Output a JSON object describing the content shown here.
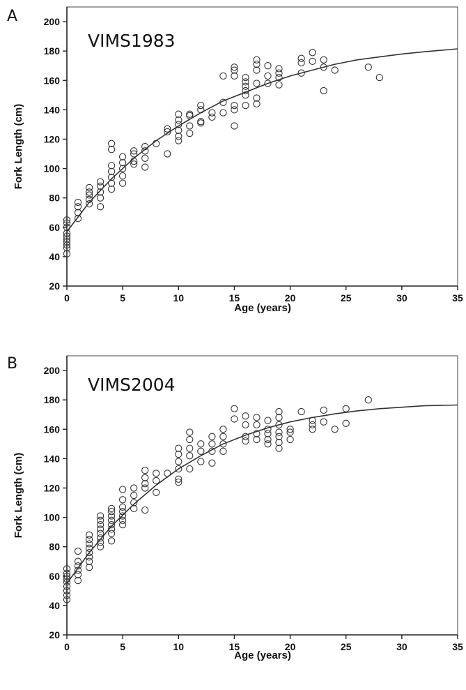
{
  "chart_data": [
    {
      "panel": "A",
      "type": "scatter",
      "title": "VIMS1983",
      "xlabel": "Age (years)",
      "ylabel": "Fork Length (cm)",
      "xlim": [
        0,
        35
      ],
      "ylim": [
        20,
        210
      ],
      "xticks": [
        0,
        5,
        10,
        15,
        20,
        25,
        30,
        35
      ],
      "yticks": [
        20,
        40,
        60,
        80,
        100,
        120,
        140,
        160,
        180,
        200
      ],
      "grid": false,
      "points": [
        [
          0,
          42
        ],
        [
          0,
          46
        ],
        [
          0,
          48
        ],
        [
          0,
          50
        ],
        [
          0,
          52
        ],
        [
          0,
          54
        ],
        [
          0,
          56
        ],
        [
          0,
          60
        ],
        [
          0,
          63
        ],
        [
          0,
          65
        ],
        [
          1,
          66
        ],
        [
          1,
          70
        ],
        [
          1,
          74
        ],
        [
          1,
          77
        ],
        [
          2,
          76
        ],
        [
          2,
          79
        ],
        [
          2,
          82
        ],
        [
          2,
          84
        ],
        [
          2,
          87
        ],
        [
          3,
          74
        ],
        [
          3,
          80
        ],
        [
          3,
          84
        ],
        [
          3,
          88
        ],
        [
          3,
          91
        ],
        [
          4,
          86
        ],
        [
          4,
          90
        ],
        [
          4,
          94
        ],
        [
          4,
          98
        ],
        [
          4,
          102
        ],
        [
          4,
          113
        ],
        [
          4,
          117
        ],
        [
          5,
          90
        ],
        [
          5,
          95
        ],
        [
          5,
          100
        ],
        [
          5,
          104
        ],
        [
          5,
          108
        ],
        [
          6,
          103
        ],
        [
          6,
          105
        ],
        [
          6,
          110
        ],
        [
          6,
          112
        ],
        [
          7,
          101
        ],
        [
          7,
          107
        ],
        [
          7,
          112
        ],
        [
          7,
          115
        ],
        [
          8,
          117
        ],
        [
          9,
          110
        ],
        [
          9,
          125
        ],
        [
          9,
          127
        ],
        [
          10,
          119
        ],
        [
          10,
          122
        ],
        [
          10,
          126
        ],
        [
          10,
          130
        ],
        [
          10,
          133
        ],
        [
          10,
          137
        ],
        [
          11,
          124
        ],
        [
          11,
          129
        ],
        [
          11,
          136
        ],
        [
          11,
          137
        ],
        [
          12,
          131
        ],
        [
          12,
          132
        ],
        [
          12,
          140
        ],
        [
          12,
          143
        ],
        [
          13,
          135
        ],
        [
          13,
          138
        ],
        [
          14,
          138
        ],
        [
          14,
          145
        ],
        [
          14,
          163
        ],
        [
          15,
          129
        ],
        [
          15,
          140
        ],
        [
          15,
          143
        ],
        [
          15,
          163
        ],
        [
          15,
          167
        ],
        [
          15,
          169
        ],
        [
          16,
          143
        ],
        [
          16,
          150
        ],
        [
          16,
          153
        ],
        [
          16,
          156
        ],
        [
          16,
          159
        ],
        [
          16,
          162
        ],
        [
          17,
          144
        ],
        [
          17,
          148
        ],
        [
          17,
          158
        ],
        [
          17,
          167
        ],
        [
          17,
          171
        ],
        [
          17,
          174
        ],
        [
          18,
          158
        ],
        [
          18,
          163
        ],
        [
          18,
          170
        ],
        [
          19,
          157
        ],
        [
          19,
          162
        ],
        [
          19,
          165
        ],
        [
          19,
          168
        ],
        [
          21,
          165
        ],
        [
          21,
          172
        ],
        [
          21,
          175
        ],
        [
          22,
          173
        ],
        [
          22,
          179
        ],
        [
          23,
          153
        ],
        [
          23,
          169
        ],
        [
          23,
          174
        ],
        [
          24,
          167
        ],
        [
          27,
          169
        ],
        [
          28,
          162
        ]
      ],
      "fit": [
        [
          0,
          57
        ],
        [
          2,
          77
        ],
        [
          4,
          93
        ],
        [
          6,
          107
        ],
        [
          8,
          119
        ],
        [
          10,
          129
        ],
        [
          12,
          138
        ],
        [
          14,
          146
        ],
        [
          16,
          152
        ],
        [
          18,
          158
        ],
        [
          20,
          163
        ],
        [
          22,
          167
        ],
        [
          24,
          171
        ],
        [
          26,
          174
        ],
        [
          28,
          176
        ],
        [
          30,
          178
        ],
        [
          32,
          179.5
        ],
        [
          35,
          181.5
        ]
      ]
    },
    {
      "panel": "B",
      "type": "scatter",
      "title": "VIMS2004",
      "xlabel": "Age (years)",
      "ylabel": "Fork Length (cm)",
      "xlim": [
        0,
        35
      ],
      "ylim": [
        20,
        210
      ],
      "xticks": [
        0,
        5,
        10,
        15,
        20,
        25,
        30,
        35
      ],
      "yticks": [
        20,
        40,
        60,
        80,
        100,
        120,
        140,
        160,
        180,
        200
      ],
      "grid": false,
      "points": [
        [
          0,
          44
        ],
        [
          0,
          47
        ],
        [
          0,
          50
        ],
        [
          0,
          53
        ],
        [
          0,
          56
        ],
        [
          0,
          58
        ],
        [
          0,
          60
        ],
        [
          0,
          62
        ],
        [
          0,
          65
        ],
        [
          1,
          57
        ],
        [
          1,
          61
        ],
        [
          1,
          64
        ],
        [
          1,
          67
        ],
        [
          1,
          70
        ],
        [
          1,
          77
        ],
        [
          2,
          66
        ],
        [
          2,
          70
        ],
        [
          2,
          73
        ],
        [
          2,
          76
        ],
        [
          2,
          79
        ],
        [
          2,
          82
        ],
        [
          2,
          85
        ],
        [
          2,
          88
        ],
        [
          3,
          80
        ],
        [
          3,
          83
        ],
        [
          3,
          86
        ],
        [
          3,
          89
        ],
        [
          3,
          92
        ],
        [
          3,
          95
        ],
        [
          3,
          98
        ],
        [
          3,
          101
        ],
        [
          4,
          84
        ],
        [
          4,
          89
        ],
        [
          4,
          92
        ],
        [
          4,
          95
        ],
        [
          4,
          98
        ],
        [
          4,
          101
        ],
        [
          4,
          104
        ],
        [
          4,
          106
        ],
        [
          5,
          95
        ],
        [
          5,
          98
        ],
        [
          5,
          101
        ],
        [
          5,
          104
        ],
        [
          5,
          107
        ],
        [
          5,
          112
        ],
        [
          5,
          119
        ],
        [
          6,
          106
        ],
        [
          6,
          110
        ],
        [
          6,
          115
        ],
        [
          6,
          120
        ],
        [
          7,
          105
        ],
        [
          7,
          120
        ],
        [
          7,
          123
        ],
        [
          7,
          127
        ],
        [
          7,
          132
        ],
        [
          8,
          117
        ],
        [
          8,
          125
        ],
        [
          8,
          130
        ],
        [
          9,
          130
        ],
        [
          10,
          124
        ],
        [
          10,
          126
        ],
        [
          10,
          133
        ],
        [
          10,
          138
        ],
        [
          10,
          143
        ],
        [
          10,
          147
        ],
        [
          11,
          133
        ],
        [
          11,
          142
        ],
        [
          11,
          147
        ],
        [
          11,
          153
        ],
        [
          11,
          158
        ],
        [
          12,
          138
        ],
        [
          12,
          145
        ],
        [
          12,
          150
        ],
        [
          13,
          137
        ],
        [
          13,
          145
        ],
        [
          13,
          150
        ],
        [
          13,
          155
        ],
        [
          14,
          145
        ],
        [
          14,
          150
        ],
        [
          14,
          155
        ],
        [
          14,
          160
        ],
        [
          15,
          167
        ],
        [
          15,
          174
        ],
        [
          16,
          152
        ],
        [
          16,
          155
        ],
        [
          16,
          163
        ],
        [
          16,
          169
        ],
        [
          17,
          153
        ],
        [
          17,
          157
        ],
        [
          17,
          163
        ],
        [
          17,
          168
        ],
        [
          18,
          150
        ],
        [
          18,
          153
        ],
        [
          18,
          157
        ],
        [
          18,
          160
        ],
        [
          18,
          166
        ],
        [
          19,
          147
        ],
        [
          19,
          151
        ],
        [
          19,
          155
        ],
        [
          19,
          158
        ],
        [
          19,
          163
        ],
        [
          19,
          168
        ],
        [
          19,
          172
        ],
        [
          20,
          153
        ],
        [
          20,
          158
        ],
        [
          20,
          160
        ],
        [
          21,
          172
        ],
        [
          22,
          160
        ],
        [
          22,
          163
        ],
        [
          22,
          166
        ],
        [
          23,
          165
        ],
        [
          23,
          173
        ],
        [
          24,
          160
        ],
        [
          25,
          164
        ],
        [
          25,
          174
        ],
        [
          27,
          180
        ]
      ],
      "fit": [
        [
          0,
          55
        ],
        [
          2,
          76
        ],
        [
          4,
          94
        ],
        [
          6,
          109
        ],
        [
          8,
          122
        ],
        [
          10,
          133
        ],
        [
          12,
          142
        ],
        [
          14,
          150
        ],
        [
          16,
          156
        ],
        [
          18,
          161
        ],
        [
          20,
          165
        ],
        [
          22,
          168
        ],
        [
          24,
          170.5
        ],
        [
          26,
          172.5
        ],
        [
          28,
          174
        ],
        [
          30,
          175
        ],
        [
          32,
          176
        ],
        [
          35,
          176.5
        ]
      ]
    }
  ]
}
